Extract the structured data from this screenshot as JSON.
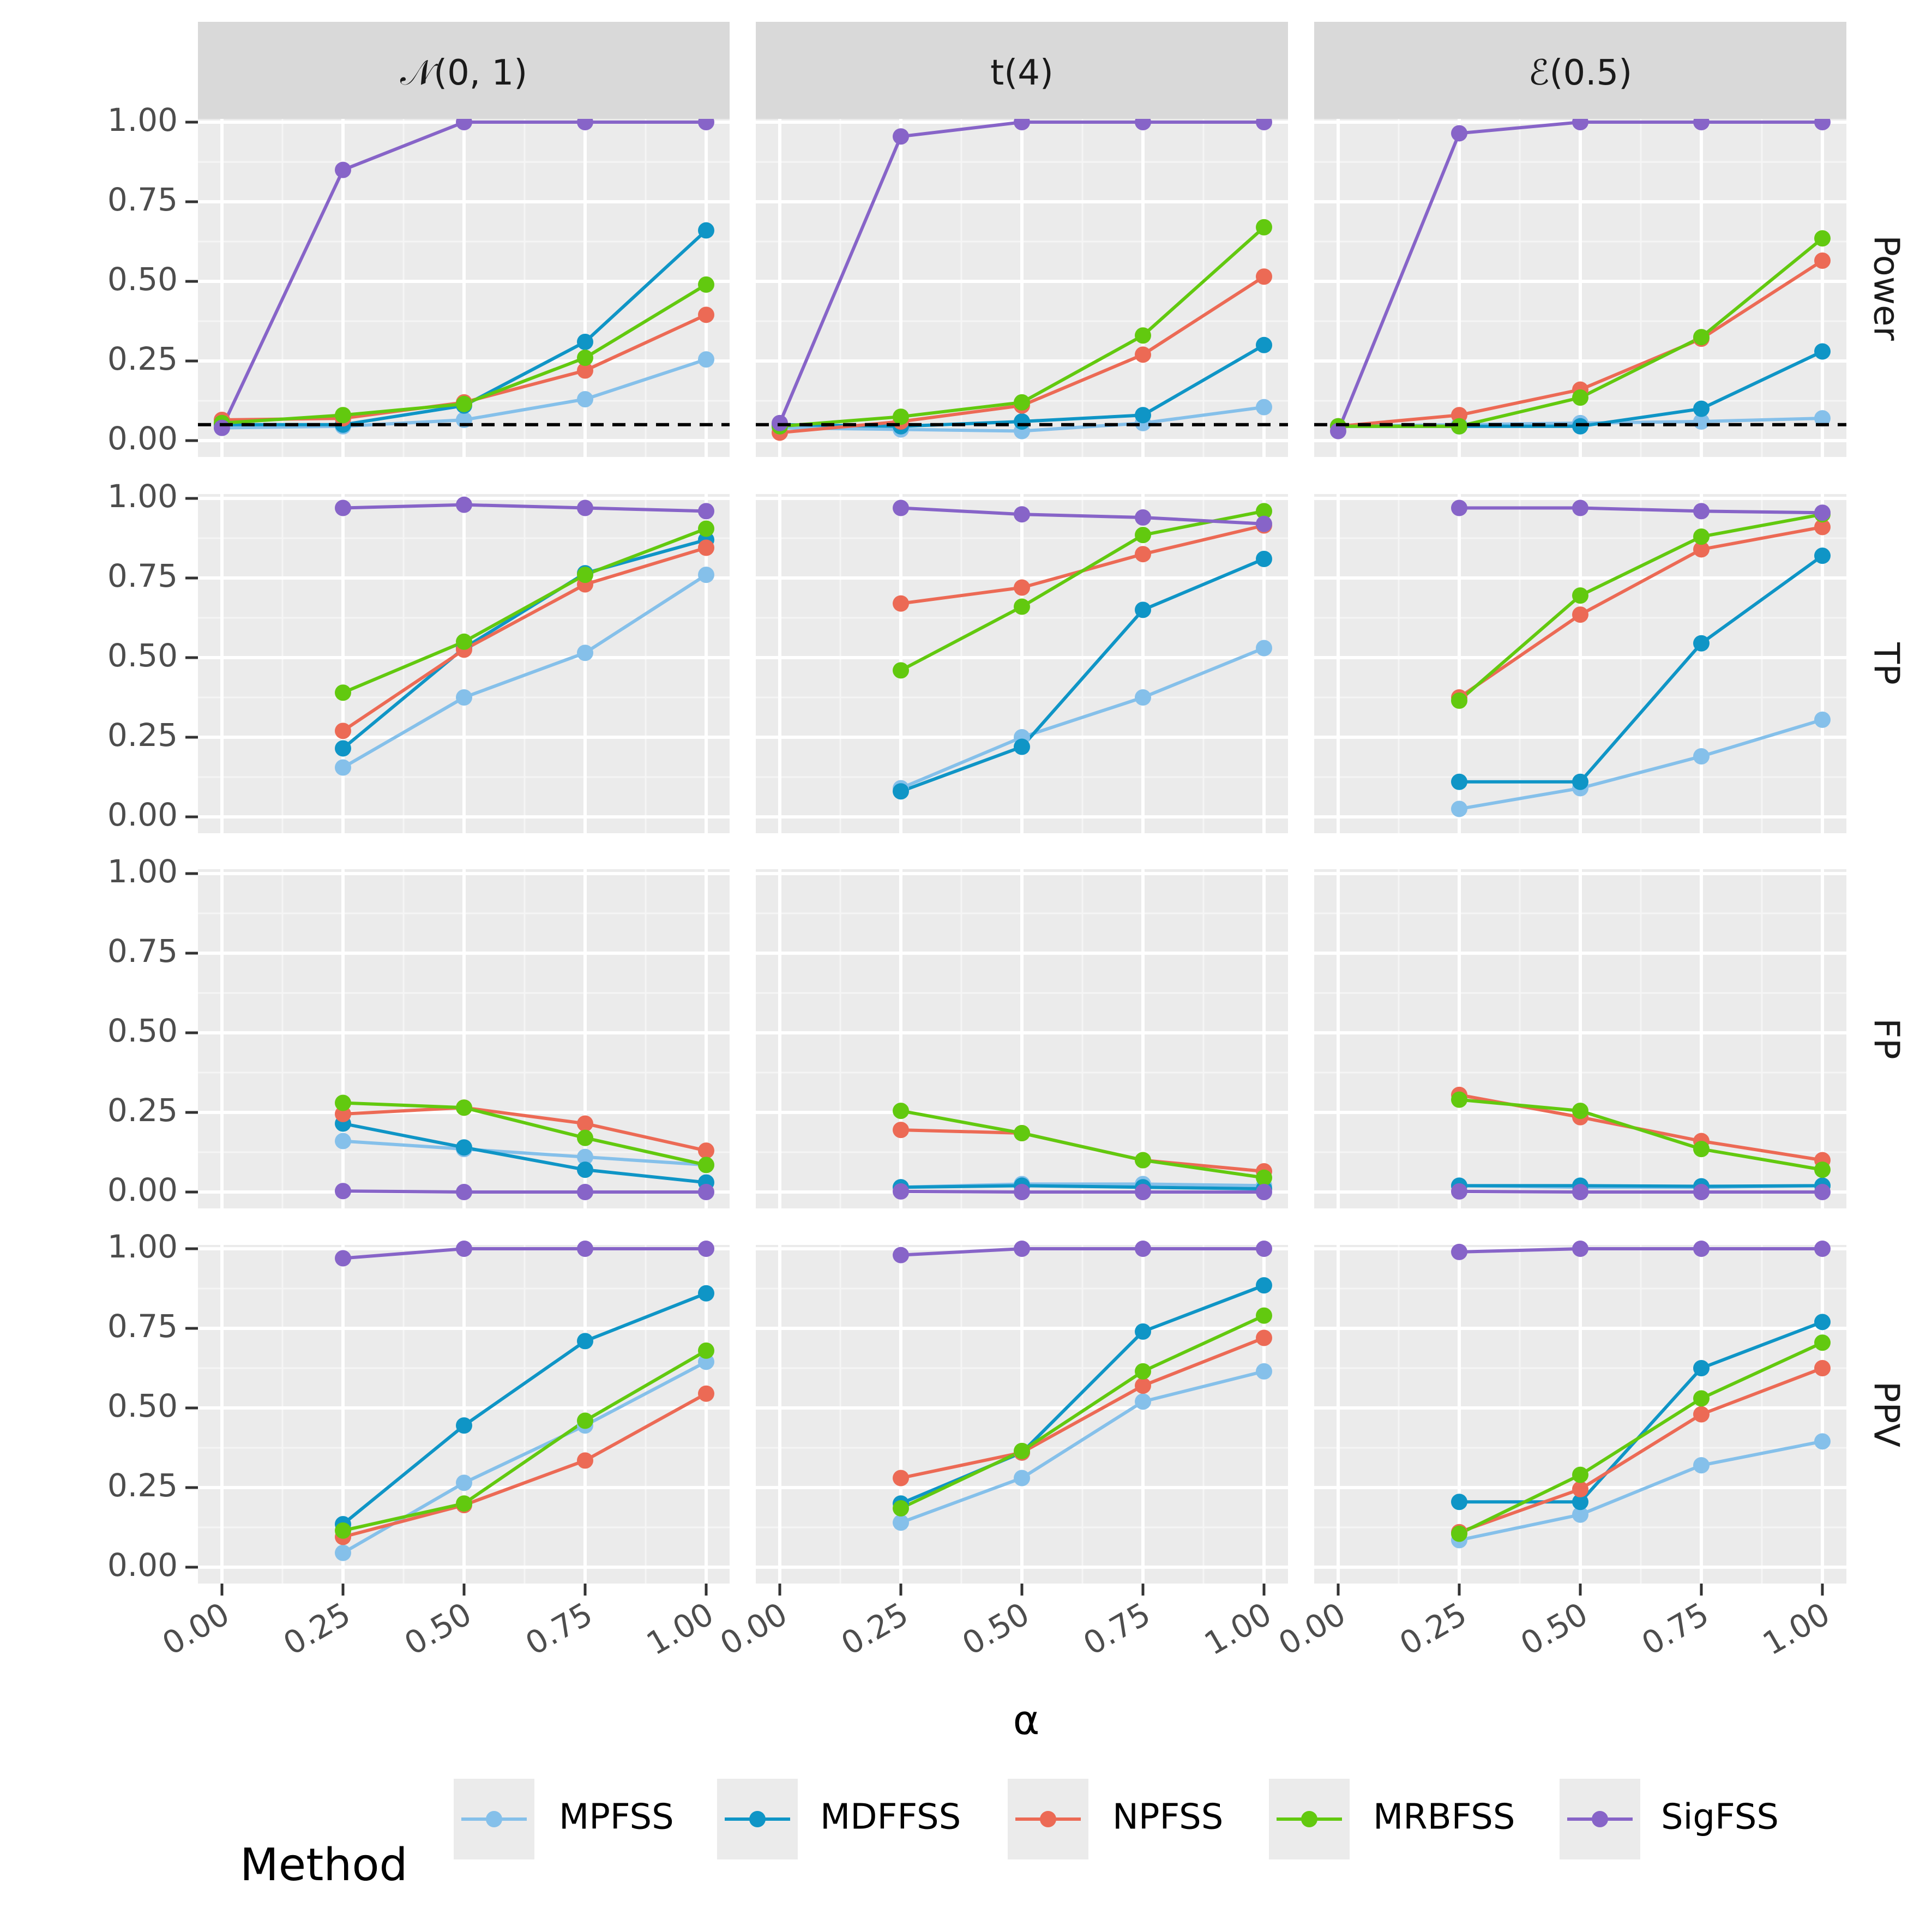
{
  "chart_data": {
    "type": "line",
    "xlabel": "α",
    "x": [
      0,
      0.25,
      0.5,
      0.75,
      1
    ],
    "x_tick_labels": [
      "0.00",
      "0.25",
      "0.50",
      "0.75",
      "1.00"
    ],
    "y_tick_labels": [
      "0.00",
      "0.25",
      "0.50",
      "0.75",
      "1.00"
    ],
    "ylim": [
      -0.04,
      1.05
    ],
    "grid": true,
    "reference_line": {
      "y": 0.05,
      "style": "dashed",
      "panels": "Power"
    },
    "legend": {
      "title": "Method",
      "position": "bottom",
      "entries": [
        "MPFSS",
        "MDFFSS",
        "NPFSS",
        "MRBFSS",
        "SigFSS"
      ]
    },
    "colors": {
      "MPFSS": "#85c0ea",
      "MDFFSS": "#0f95c6",
      "NPFSS": "#ec6a55",
      "MRBFSS": "#62c90f",
      "SigFSS": "#8764c8"
    },
    "columns": [
      {
        "key": "normal",
        "label": "𝒩(0, 1)"
      },
      {
        "key": "t4",
        "label": "t(4)"
      },
      {
        "key": "exp",
        "label": "ℰ(0.5)"
      }
    ],
    "rows": [
      {
        "key": "power",
        "label": "Power"
      },
      {
        "key": "tp",
        "label": "TP"
      },
      {
        "key": "fp",
        "label": "FP"
      },
      {
        "key": "ppv",
        "label": "PPV"
      }
    ],
    "panels": {
      "power": {
        "normal": {
          "MPFSS": [
            0.04,
            0.045,
            0.065,
            0.13,
            0.255
          ],
          "MDFFSS": [
            0.05,
            0.05,
            0.11,
            0.31,
            0.66
          ],
          "NPFSS": [
            0.065,
            0.07,
            0.12,
            0.22,
            0.395
          ],
          "MRBFSS": [
            0.055,
            0.08,
            0.115,
            0.26,
            0.49
          ],
          "SigFSS": [
            0.04,
            0.85,
            1.0,
            1.0,
            1.0
          ]
        },
        "t4": {
          "MPFSS": [
            0.04,
            0.035,
            0.03,
            0.055,
            0.105
          ],
          "MDFFSS": [
            0.05,
            0.045,
            0.06,
            0.08,
            0.3
          ],
          "NPFSS": [
            0.025,
            0.06,
            0.11,
            0.27,
            0.515
          ],
          "MRBFSS": [
            0.045,
            0.075,
            0.12,
            0.33,
            0.67
          ],
          "SigFSS": [
            0.055,
            0.955,
            1.0,
            1.0,
            1.0
          ]
        },
        "exp": {
          "MPFSS": [
            0.045,
            0.05,
            0.055,
            0.06,
            0.07
          ],
          "MDFFSS": [
            0.045,
            0.045,
            0.045,
            0.1,
            0.28
          ],
          "NPFSS": [
            0.045,
            0.08,
            0.16,
            0.32,
            0.565
          ],
          "MRBFSS": [
            0.045,
            0.045,
            0.135,
            0.325,
            0.635
          ],
          "SigFSS": [
            0.03,
            0.965,
            1.0,
            1.0,
            1.0
          ]
        }
      },
      "tp": {
        "normal": {
          "MPFSS": [
            null,
            0.155,
            0.375,
            0.515,
            0.76
          ],
          "MDFFSS": [
            null,
            0.215,
            0.53,
            0.765,
            0.87
          ],
          "NPFSS": [
            null,
            0.27,
            0.525,
            0.73,
            0.845
          ],
          "MRBFSS": [
            null,
            0.39,
            0.55,
            0.76,
            0.905
          ],
          "SigFSS": [
            null,
            0.97,
            0.98,
            0.97,
            0.96
          ]
        },
        "t4": {
          "MPFSS": [
            null,
            0.09,
            0.25,
            0.375,
            0.53
          ],
          "MDFFSS": [
            null,
            0.08,
            0.22,
            0.65,
            0.81
          ],
          "NPFSS": [
            null,
            0.67,
            0.72,
            0.825,
            0.915
          ],
          "MRBFSS": [
            null,
            0.46,
            0.66,
            0.885,
            0.96
          ],
          "SigFSS": [
            null,
            0.97,
            0.95,
            0.94,
            0.92
          ]
        },
        "exp": {
          "MPFSS": [
            null,
            0.025,
            0.09,
            0.19,
            0.305
          ],
          "MDFFSS": [
            null,
            0.11,
            0.11,
            0.545,
            0.82
          ],
          "NPFSS": [
            null,
            0.375,
            0.635,
            0.84,
            0.91
          ],
          "MRBFSS": [
            null,
            0.365,
            0.695,
            0.88,
            0.95
          ],
          "SigFSS": [
            null,
            0.97,
            0.97,
            0.96,
            0.955
          ]
        }
      },
      "fp": {
        "normal": {
          "MPFSS": [
            null,
            0.16,
            0.135,
            0.11,
            0.085
          ],
          "MDFFSS": [
            null,
            0.215,
            0.14,
            0.07,
            0.03
          ],
          "NPFSS": [
            null,
            0.245,
            0.265,
            0.215,
            0.13
          ],
          "MRBFSS": [
            null,
            0.28,
            0.265,
            0.17,
            0.085
          ],
          "SigFSS": [
            null,
            0.003,
            0.0,
            0.0,
            0.0
          ]
        },
        "t4": {
          "MPFSS": [
            null,
            0.015,
            0.025,
            0.025,
            0.02
          ],
          "MDFFSS": [
            null,
            0.015,
            0.02,
            0.015,
            0.01
          ],
          "NPFSS": [
            null,
            0.195,
            0.185,
            0.1,
            0.065
          ],
          "MRBFSS": [
            null,
            0.255,
            0.185,
            0.1,
            0.045
          ],
          "SigFSS": [
            null,
            0.002,
            0.0,
            0.0,
            0.0
          ]
        },
        "exp": {
          "MPFSS": [
            null,
            0.02,
            0.015,
            0.015,
            0.02
          ],
          "MDFFSS": [
            null,
            0.02,
            0.02,
            0.018,
            0.02
          ],
          "NPFSS": [
            null,
            0.305,
            0.235,
            0.16,
            0.1
          ],
          "MRBFSS": [
            null,
            0.29,
            0.255,
            0.135,
            0.07
          ],
          "SigFSS": [
            null,
            0.002,
            0.0,
            0.0,
            0.0
          ]
        }
      },
      "ppv": {
        "normal": {
          "MPFSS": [
            null,
            0.045,
            0.265,
            0.445,
            0.645
          ],
          "MDFFSS": [
            null,
            0.135,
            0.445,
            0.71,
            0.86
          ],
          "NPFSS": [
            null,
            0.095,
            0.195,
            0.335,
            0.545
          ],
          "MRBFSS": [
            null,
            0.115,
            0.2,
            0.46,
            0.68
          ],
          "SigFSS": [
            null,
            0.97,
            1.0,
            1.0,
            1.0
          ]
        },
        "t4": {
          "MPFSS": [
            null,
            0.14,
            0.28,
            0.52,
            0.615
          ],
          "MDFFSS": [
            null,
            0.2,
            0.36,
            0.74,
            0.885
          ],
          "NPFSS": [
            null,
            0.28,
            0.36,
            0.57,
            0.72
          ],
          "MRBFSS": [
            null,
            0.185,
            0.365,
            0.615,
            0.79
          ],
          "SigFSS": [
            null,
            0.98,
            1.0,
            1.0,
            1.0
          ]
        },
        "exp": {
          "MPFSS": [
            null,
            0.085,
            0.165,
            0.32,
            0.395
          ],
          "MDFFSS": [
            null,
            0.205,
            0.205,
            0.625,
            0.77
          ],
          "NPFSS": [
            null,
            0.11,
            0.245,
            0.48,
            0.625
          ],
          "MRBFSS": [
            null,
            0.105,
            0.29,
            0.53,
            0.705
          ],
          "SigFSS": [
            null,
            0.99,
            1.0,
            1.0,
            1.0
          ]
        }
      }
    }
  }
}
